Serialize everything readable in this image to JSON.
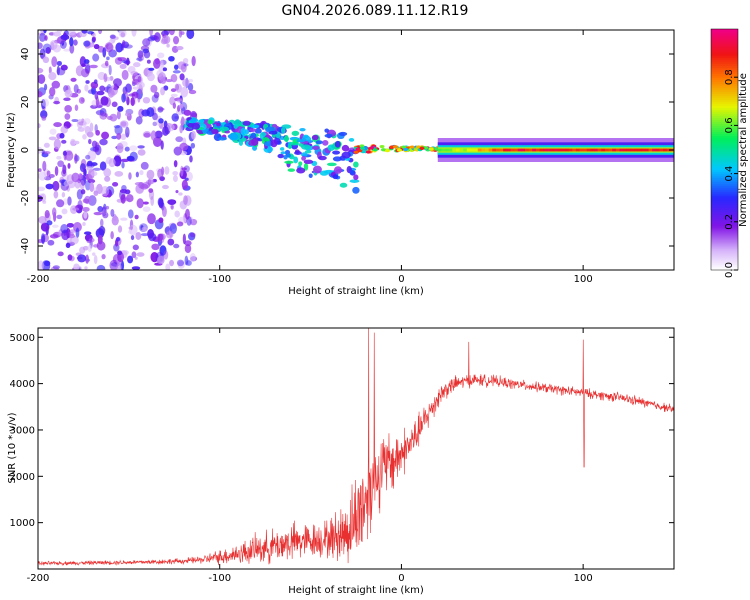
{
  "title": "GN04.2026.089.11.12.R19",
  "colors": {
    "snr_line": "#e83030",
    "spectrogram_noise": "#8a2be2",
    "background": "#ffffff"
  },
  "chart_data": [
    {
      "type": "heatmap",
      "name": "spectrogram",
      "xlabel": "Height of straight line (km)",
      "ylabel": "Frequency (Hz)",
      "xlim": [
        -200,
        150
      ],
      "ylim": [
        -50,
        50
      ],
      "xticks": [
        -200,
        -100,
        0,
        100
      ],
      "yticks": [
        -40,
        -20,
        0,
        20,
        40
      ],
      "colorbar": {
        "label": "Normalized spectral amplitude",
        "range": [
          0,
          1
        ],
        "ticks": [
          "0.0",
          "0.2",
          "0.4",
          "0.6",
          "0.8"
        ],
        "colormap": "rainbow (white, violet, blue, cyan, green, yellow, red, magenta)"
      },
      "regions": [
        {
          "description": "broadband noise",
          "x_range": [
            -200,
            -118
          ],
          "y_range": [
            -50,
            50
          ],
          "amplitude": 0.12
        },
        {
          "description": "descending fragmented echoes",
          "x_range": [
            -118,
            -25
          ],
          "freq_start": 11,
          "freq_end": -2,
          "amplitude": 0.3
        },
        {
          "description": "converging trace",
          "x_range": [
            -25,
            20
          ],
          "freq": 0.5,
          "amplitude": 0.65
        },
        {
          "description": "steady carrier",
          "x_range": [
            20,
            150
          ],
          "freq": 0,
          "amplitude": 0.9
        }
      ]
    },
    {
      "type": "line",
      "name": "snr",
      "xlabel": "Height of straight line (km)",
      "ylabel": "SNR (10 * v/v)",
      "xlim": [
        -200,
        150
      ],
      "ylim": [
        0,
        5200
      ],
      "xticks": [
        -200,
        -100,
        0,
        100
      ],
      "yticks": [
        1000,
        2000,
        3000,
        4000,
        5000
      ],
      "x": [
        -200,
        -180,
        -160,
        -140,
        -120,
        -110,
        -100,
        -90,
        -80,
        -70,
        -60,
        -50,
        -40,
        -30,
        -25,
        -20,
        -15,
        -10,
        -5,
        0,
        5,
        10,
        15,
        20,
        25,
        30,
        35,
        40,
        50,
        60,
        70,
        80,
        90,
        100,
        110,
        120,
        130,
        140,
        150
      ],
      "y": [
        120,
        130,
        140,
        150,
        170,
        200,
        260,
        330,
        420,
        500,
        580,
        620,
        650,
        800,
        1100,
        1500,
        2000,
        2200,
        2300,
        2500,
        2700,
        3000,
        3350,
        3700,
        3900,
        4000,
        4050,
        4080,
        4060,
        4000,
        3950,
        3900,
        3850,
        3800,
        3750,
        3700,
        3620,
        3530,
        3450
      ],
      "noise_amplitude": [
        40,
        40,
        45,
        50,
        60,
        80,
        150,
        220,
        300,
        350,
        400,
        350,
        400,
        700,
        900,
        1100,
        900,
        700,
        650,
        500,
        400,
        350,
        300,
        250,
        200,
        160,
        140,
        130,
        120,
        110,
        100,
        100,
        100,
        100,
        100,
        100,
        100,
        90,
        90
      ],
      "spikes": [
        {
          "x": -18,
          "y": 5200
        },
        {
          "x": -15,
          "y": 5100
        },
        {
          "x": 37,
          "y": 4900
        },
        {
          "x": 100,
          "y": 4950
        },
        {
          "x": 100.5,
          "y": 2200
        }
      ]
    }
  ]
}
